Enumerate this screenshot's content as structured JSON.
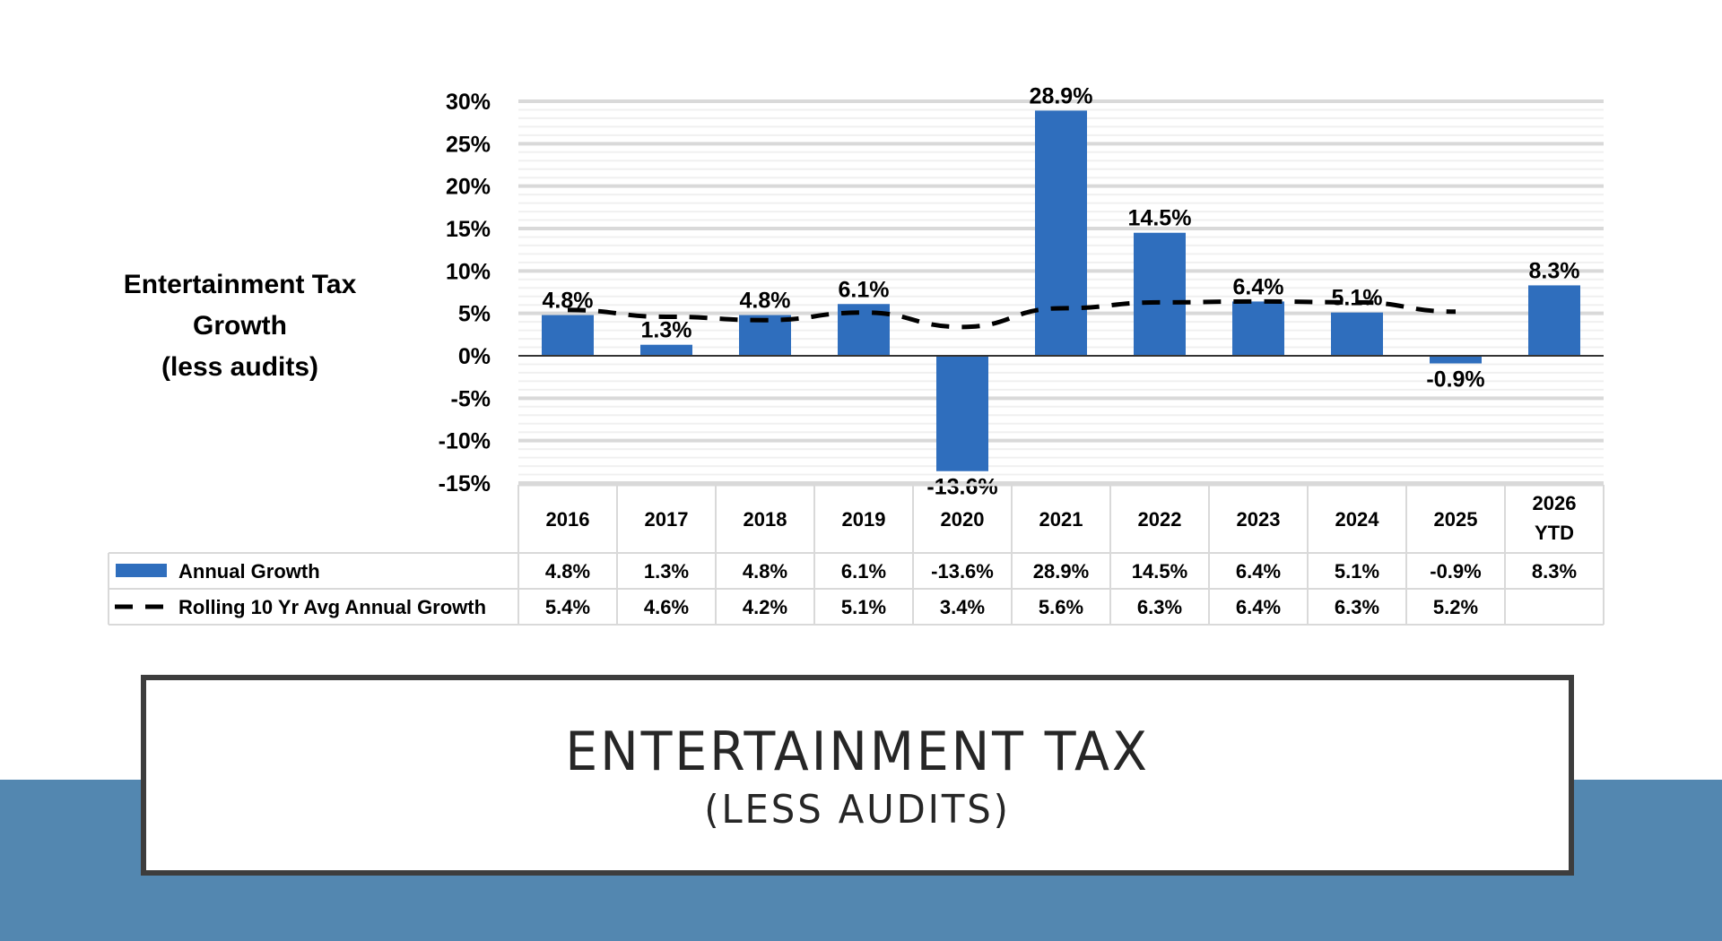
{
  "slide": {
    "title": "ENTERTAINMENT TAX",
    "subtitle": "(LESS AUDITS)",
    "band_color": "#5387b0"
  },
  "chart_data": {
    "type": "bar",
    "title_lines": [
      "Entertainment Tax",
      "Growth",
      "(less audits)"
    ],
    "categories": [
      "2016",
      "2017",
      "2018",
      "2019",
      "2020",
      "2021",
      "2022",
      "2023",
      "2024",
      "2025",
      "2026 YTD"
    ],
    "category_lines": [
      [
        "2016"
      ],
      [
        "2017"
      ],
      [
        "2018"
      ],
      [
        "2019"
      ],
      [
        "2020"
      ],
      [
        "2021"
      ],
      [
        "2022"
      ],
      [
        "2023"
      ],
      [
        "2024"
      ],
      [
        "2025"
      ],
      [
        "2026",
        "YTD"
      ]
    ],
    "series": [
      {
        "name": "Annual Growth",
        "type": "bar",
        "color": "#2f6ebd",
        "values": [
          4.8,
          1.3,
          4.8,
          6.1,
          -13.6,
          28.9,
          14.5,
          6.4,
          5.1,
          -0.9,
          8.3
        ],
        "labels": [
          "4.8%",
          "1.3%",
          "4.8%",
          "6.1%",
          "-13.6%",
          "28.9%",
          "14.5%",
          "6.4%",
          "5.1%",
          "-0.9%",
          "8.3%"
        ]
      },
      {
        "name": "Rolling 10 Yr Avg Annual Growth",
        "type": "line",
        "style": "dashed",
        "color": "#000000",
        "values": [
          5.4,
          4.6,
          4.2,
          5.1,
          3.4,
          5.6,
          6.3,
          6.4,
          6.3,
          5.2,
          null
        ],
        "labels": [
          "5.4%",
          "4.6%",
          "4.2%",
          "5.1%",
          "3.4%",
          "5.6%",
          "6.3%",
          "6.4%",
          "6.3%",
          "5.2%",
          ""
        ]
      }
    ],
    "ylim": [
      -15,
      30
    ],
    "yticks": [
      30,
      25,
      20,
      15,
      10,
      5,
      0,
      -5,
      -10,
      -15
    ],
    "ytick_labels": [
      "30%",
      "25%",
      "20%",
      "15%",
      "10%",
      "5%",
      "0%",
      "-5%",
      "-10%",
      "-15%"
    ],
    "grid": true,
    "data_table": true,
    "xlabel": "",
    "ylabel": ""
  }
}
